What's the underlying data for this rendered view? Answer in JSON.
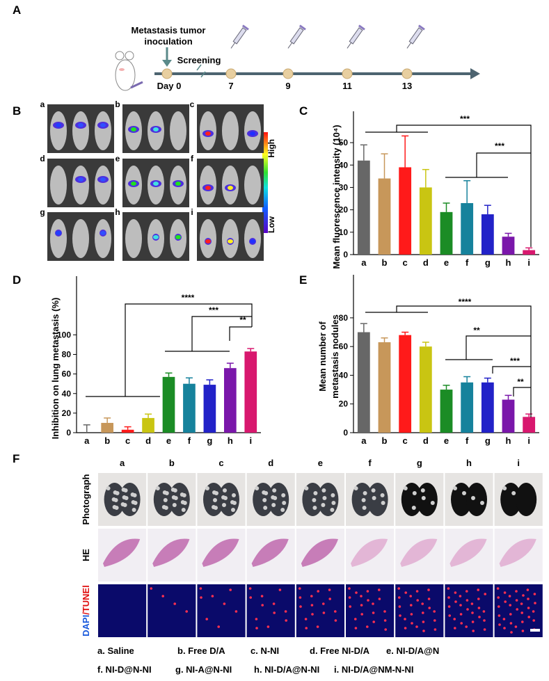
{
  "panel_labels": [
    "A",
    "B",
    "C",
    "D",
    "E",
    "F"
  ],
  "timeline": {
    "event": [
      "Metastasis tumor",
      "inoculation"
    ],
    "phase": "Screening",
    "days": [
      "Day 0",
      "7",
      "9",
      "11",
      "13"
    ]
  },
  "imaging": {
    "groups": [
      "a",
      "b",
      "c",
      "d",
      "e",
      "f",
      "g",
      "h",
      "i"
    ],
    "scale_high": "High",
    "scale_low": "Low"
  },
  "chart_data": [
    {
      "type": "bar",
      "ylabel": "Mean fluorescence intensity (10⁴)",
      "categories": [
        "a",
        "b",
        "c",
        "d",
        "e",
        "f",
        "g",
        "h",
        "i"
      ],
      "values": [
        42,
        34,
        39,
        30,
        19,
        23,
        18,
        8,
        2
      ],
      "errors": [
        7,
        11,
        14,
        8,
        4,
        10,
        4,
        1.5,
        1
      ],
      "colors": [
        "#676767",
        "#c7975a",
        "#ff1a1a",
        "#c9c512",
        "#1b8c25",
        "#16829c",
        "#2222c8",
        "#7a17aa",
        "#d8186e"
      ],
      "ylim": [
        0,
        64
      ],
      "yticks": [
        0,
        10,
        20,
        30,
        40,
        50
      ],
      "annotations": [
        "***",
        "***"
      ]
    },
    {
      "type": "bar",
      "ylabel": "Inhibition on lung metastasis (%)",
      "categories": [
        "a",
        "b",
        "c",
        "d",
        "e",
        "f",
        "g",
        "h",
        "i"
      ],
      "values": [
        0,
        10,
        3,
        15,
        57,
        50,
        49,
        66,
        83
      ],
      "errors": [
        8,
        5,
        3,
        4,
        4,
        6,
        5,
        5,
        3
      ],
      "colors": [
        "#676767",
        "#c7975a",
        "#ff1a1a",
        "#c9c512",
        "#1b8c25",
        "#16829c",
        "#2222c8",
        "#7a17aa",
        "#d8186e"
      ],
      "ylim": [
        0,
        160
      ],
      "yticks": [
        0,
        20,
        40,
        60,
        80,
        100
      ],
      "annotations": [
        "****",
        "***",
        "**"
      ]
    },
    {
      "type": "bar",
      "ylabel": [
        "Mean number of",
        "metastasis nodules"
      ],
      "categories": [
        "a",
        "b",
        "c",
        "d",
        "e",
        "f",
        "g",
        "h",
        "i"
      ],
      "values": [
        70,
        63,
        68,
        60,
        30,
        35,
        35,
        23,
        11
      ],
      "errors": [
        6,
        3,
        2,
        3,
        3,
        4,
        3,
        3,
        2
      ],
      "colors": [
        "#676767",
        "#c7975a",
        "#ff1a1a",
        "#c9c512",
        "#1b8c25",
        "#16829c",
        "#2222c8",
        "#7a17aa",
        "#d8186e"
      ],
      "ylim": [
        0,
        110
      ],
      "yticks": [
        0,
        20,
        40,
        60,
        80
      ],
      "annotations": [
        "****",
        "**",
        "***",
        "**"
      ]
    }
  ],
  "histology": {
    "columns": [
      "a",
      "b",
      "c",
      "d",
      "e",
      "f",
      "g",
      "h",
      "i"
    ],
    "rows": [
      "Photograph",
      "HE"
    ],
    "stain_row": [
      "DAPI",
      "/TUNEl"
    ]
  },
  "legend": [
    "a. Saline",
    "b. Free D/A",
    "c. N-NI",
    "d. Free NI-D/A",
    "e. NI-D/A@N",
    "f.  NI-D@N-NI",
    "g. NI-A@N-NI",
    "h. NI-D/A@N-NI",
    "i. NI-D/A@NM-N-NI"
  ]
}
